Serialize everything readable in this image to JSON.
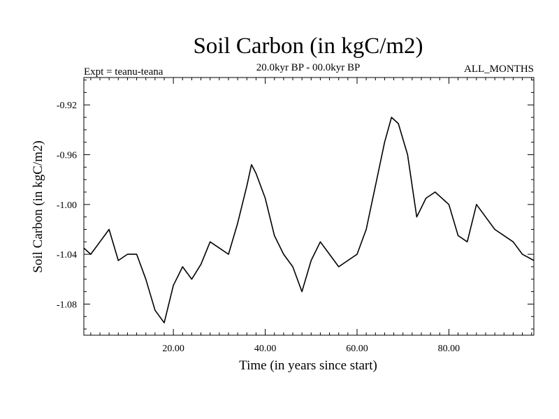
{
  "chart_data": {
    "type": "line",
    "title": "Soil Carbon (in kgC/m2)",
    "subtitle": "20.0kyr BP - 00.0kyr BP",
    "left_note": "Expt = teanu-teana",
    "right_note": "ALL_MONTHS",
    "xlabel": "Time (in years since start)",
    "ylabel": "Soil Carbon (in kgC/m2)",
    "xlim": [
      0.5,
      98.5
    ],
    "ylim": [
      -1.105,
      -0.898
    ],
    "xticks": [
      20,
      40,
      60,
      80
    ],
    "xtick_labels": [
      "20.00",
      "40.00",
      "60.00",
      "80.00"
    ],
    "yticks": [
      -0.92,
      -0.96,
      -1.0,
      -1.04,
      -1.08
    ],
    "ytick_labels": [
      "-0.92",
      "-0.96",
      "-1.00",
      "-1.04",
      "-1.08"
    ],
    "series": [
      {
        "name": "soil carbon",
        "x": [
          0.5,
          2,
          4,
          6,
          8,
          10,
          12,
          14,
          16,
          18,
          20,
          22,
          24,
          26,
          28,
          30,
          32,
          34,
          36,
          37,
          38,
          40,
          42,
          44,
          46,
          48,
          50,
          52,
          54,
          56,
          58,
          60,
          62,
          64,
          66,
          67.5,
          69,
          71,
          73,
          75,
          77,
          80,
          82,
          84,
          86,
          88,
          90,
          92,
          94,
          96,
          98.5
        ],
        "y": [
          -1.035,
          -1.04,
          -1.03,
          -1.02,
          -1.045,
          -1.04,
          -1.04,
          -1.06,
          -1.085,
          -1.095,
          -1.065,
          -1.05,
          -1.06,
          -1.048,
          -1.03,
          -1.035,
          -1.04,
          -1.015,
          -0.985,
          -0.968,
          -0.975,
          -0.995,
          -1.025,
          -1.04,
          -1.05,
          -1.07,
          -1.045,
          -1.03,
          -1.04,
          -1.05,
          -1.045,
          -1.04,
          -1.02,
          -0.985,
          -0.95,
          -0.93,
          -0.935,
          -0.96,
          -1.01,
          -0.995,
          -0.99,
          -1.0,
          -1.025,
          -1.03,
          -1.0,
          -1.01,
          -1.02,
          -1.025,
          -1.03,
          -1.04,
          -1.045
        ]
      }
    ]
  }
}
